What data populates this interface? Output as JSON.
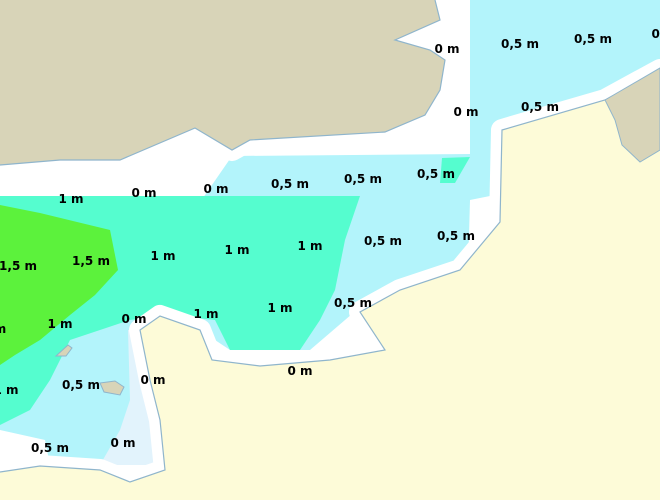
{
  "map": {
    "colors": {
      "sea_0m": "#e2f3fc",
      "sea_0_5m": "#b3f4fb",
      "sea_1m": "#55fdcf",
      "sea_1_5m": "#5cf23c",
      "land_uk_belgium": "#d8d4b8",
      "land_france": "#fdfbd8",
      "coastline": "#8fb5cc"
    },
    "labels": [
      "0 m",
      "0,5 m",
      "0,5 m",
      "0,",
      "0 m",
      "0,5 m",
      "1 m",
      "0 m",
      "0 m",
      "0,5 m",
      "0,5 m",
      "0,5 m",
      "1,5 m",
      "1,5 m",
      "1 m",
      "1 m",
      "1 m",
      "0,5 m",
      "0,5 m",
      "0 m",
      "1 m",
      "1 m",
      "0,5 m",
      "m",
      "1 m",
      "0 m",
      "0 m",
      "1 m",
      "0,5 m",
      "0 m",
      "0,5 m"
    ]
  }
}
